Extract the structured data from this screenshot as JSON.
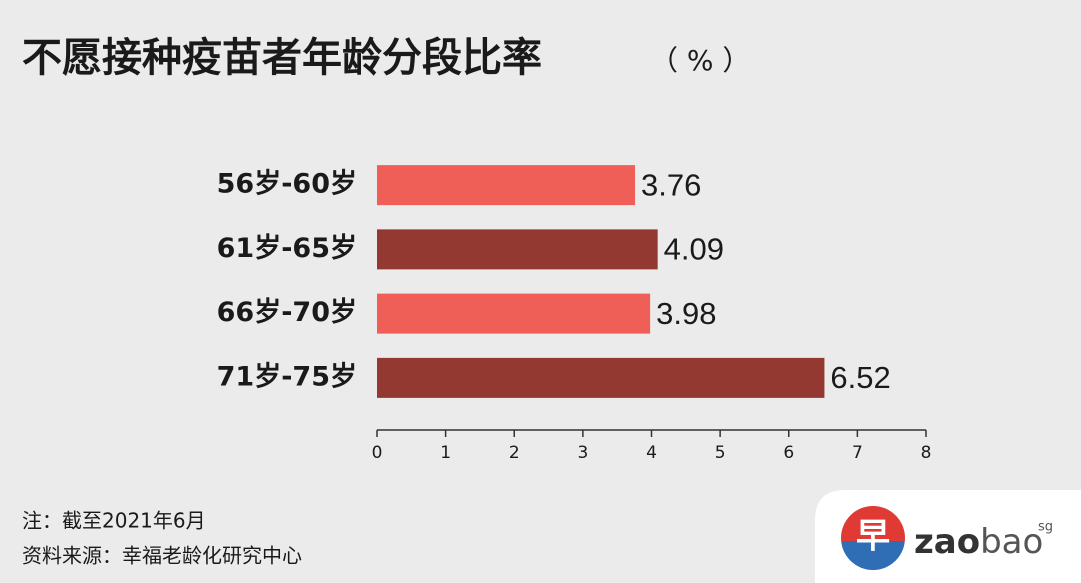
{
  "chart_data": {
    "type": "hbar",
    "title": "不愿接种疫苗者年龄分段比率",
    "unit": "（ % ）",
    "categories": [
      "56岁-60岁",
      "61岁-65岁",
      "66岁-70岁",
      "71岁-75岁"
    ],
    "values": [
      3.76,
      4.09,
      3.98,
      6.52
    ],
    "colors": [
      "#f05f57",
      "#943832",
      "#f05f57",
      "#943832"
    ],
    "xlim": [
      0,
      8
    ],
    "xticks": [
      0,
      1,
      2,
      3,
      4,
      5,
      6,
      7,
      8
    ]
  },
  "notes": [
    "注：截至2021年6月",
    "资料来源：幸福老龄化研究中心"
  ],
  "logo": {
    "mark": "早",
    "name_bold": "zao",
    "name_light": "bao",
    "suffix": "sg"
  }
}
